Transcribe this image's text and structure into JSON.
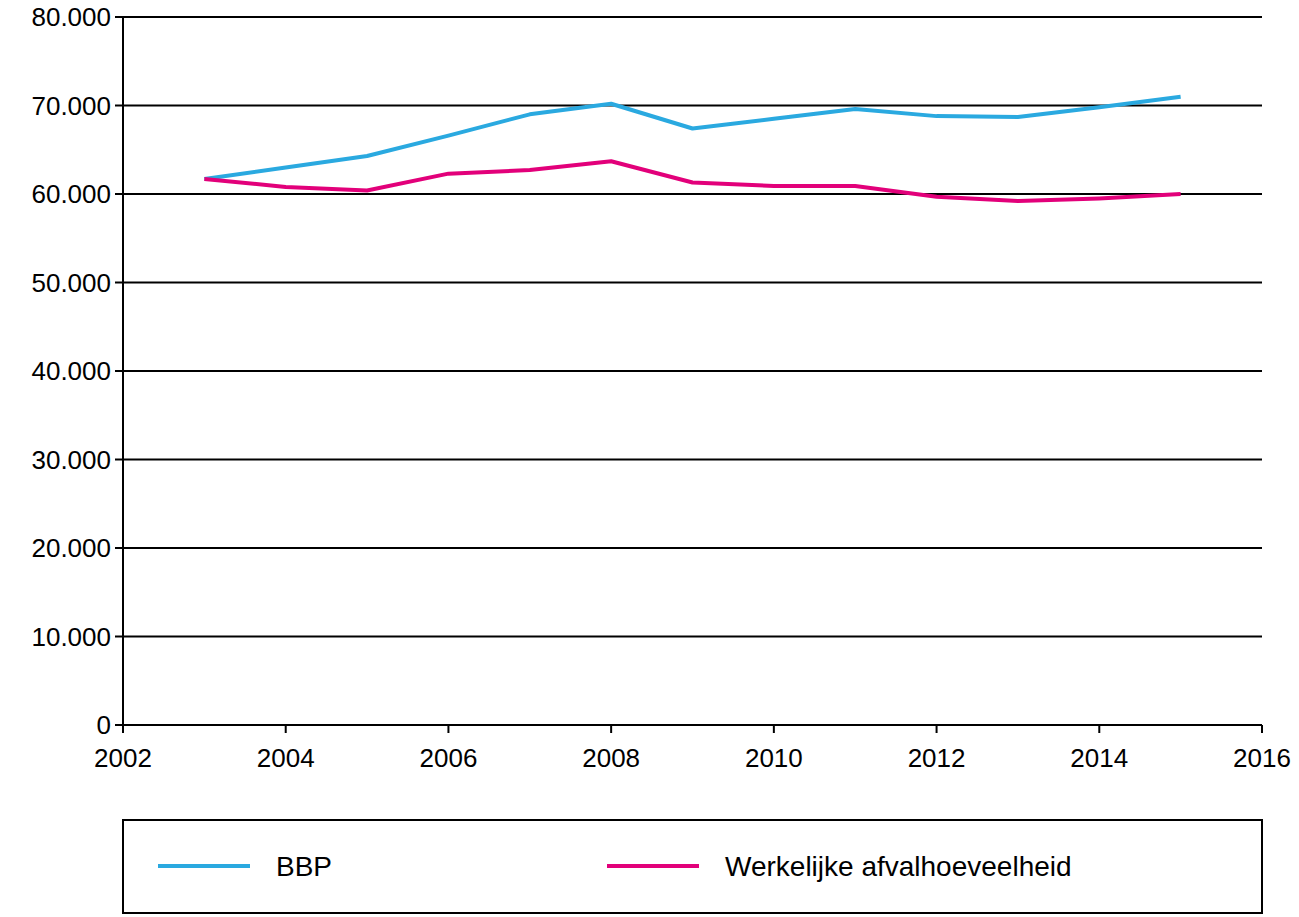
{
  "chart_data": {
    "type": "line",
    "x": [
      2003,
      2004,
      2005,
      2006,
      2007,
      2008,
      2009,
      2010,
      2011,
      2012,
      2013,
      2014,
      2015
    ],
    "series": [
      {
        "name": "BBP",
        "color": "#2aa9e0",
        "values": [
          61700,
          63000,
          64300,
          66600,
          69000,
          70200,
          67400,
          68500,
          69600,
          68800,
          68700,
          69800,
          71000
        ]
      },
      {
        "name": "Werkelijke afvalhoeveelheid",
        "color": "#e2007a",
        "values": [
          61700,
          60800,
          60400,
          62300,
          62700,
          63700,
          61300,
          60900,
          60900,
          59700,
          59200,
          59500,
          60000
        ]
      }
    ],
    "xlim": [
      2002,
      2016
    ],
    "xticks": [
      2002,
      2004,
      2006,
      2008,
      2010,
      2012,
      2014,
      2016
    ],
    "ylim": [
      0,
      80000
    ],
    "yticks": [
      0,
      {
        "value": 10000,
        "label": "10.000"
      },
      {
        "value": 20000,
        "label": "20.000"
      },
      {
        "value": 30000,
        "label": "30.000"
      },
      {
        "value": 40000,
        "label": "40.000"
      },
      {
        "value": 50000,
        "label": "50.000"
      },
      {
        "value": 60000,
        "label": "60.000"
      },
      {
        "value": 70000,
        "label": "70.000"
      },
      {
        "value": 80000,
        "label": "80.000"
      }
    ],
    "grid": true,
    "legend": "bottom"
  }
}
